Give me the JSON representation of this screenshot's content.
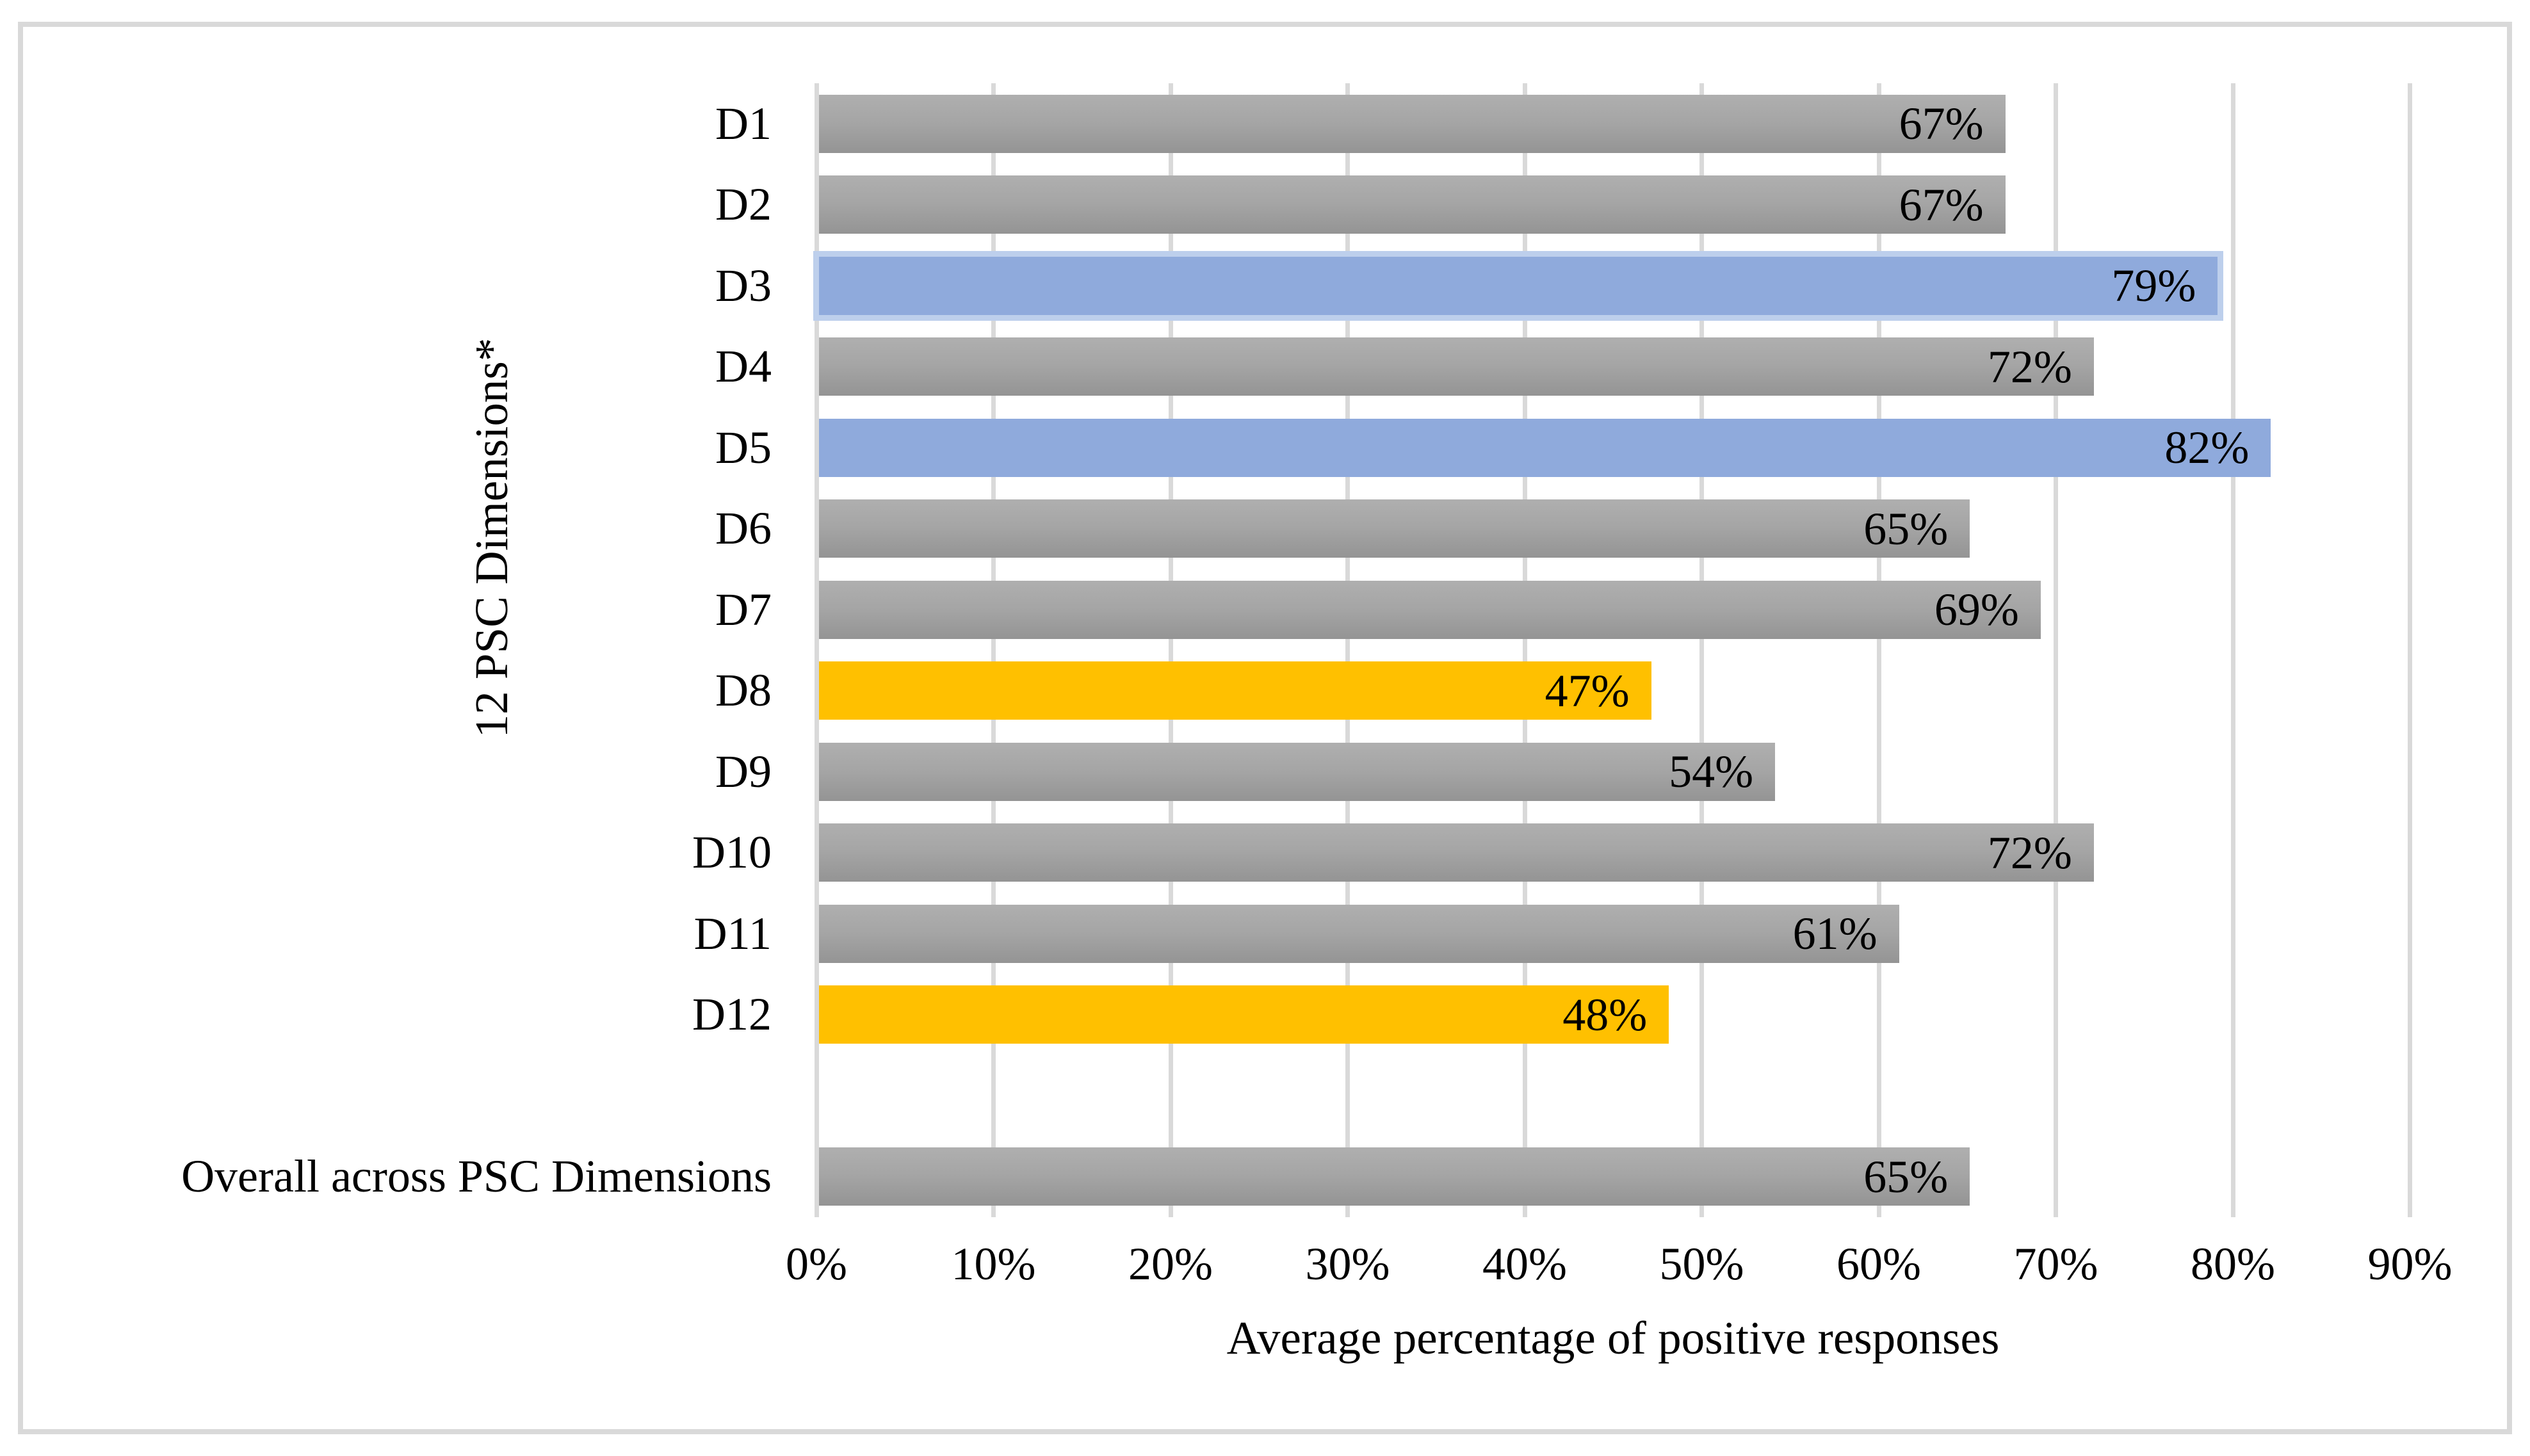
{
  "chart_data": {
    "type": "bar",
    "orientation": "horizontal",
    "title": "",
    "xlabel": "Average percentage of positive responses",
    "ylabel": "12 PSC Dimensions*",
    "xlim": [
      0,
      90
    ],
    "x_ticks": [
      "0%",
      "10%",
      "20%",
      "30%",
      "40%",
      "50%",
      "60%",
      "70%",
      "80%",
      "90%"
    ],
    "grid": "vertical",
    "legend": "none",
    "categories": [
      "D1",
      "D2",
      "D3",
      "D4",
      "D5",
      "D6",
      "D7",
      "D8",
      "D9",
      "D10",
      "D11",
      "D12",
      "",
      "Overall across PSC Dimensions"
    ],
    "rows": [
      {
        "label": "D1",
        "value": 67,
        "value_label": "67%",
        "color": "gray"
      },
      {
        "label": "D2",
        "value": 67,
        "value_label": "67%",
        "color": "gray"
      },
      {
        "label": "D3",
        "value": 79,
        "value_label": "79%",
        "color": "blue",
        "bordered": true
      },
      {
        "label": "D4",
        "value": 72,
        "value_label": "72%",
        "color": "gray"
      },
      {
        "label": "D5",
        "value": 82,
        "value_label": "82%",
        "color": "blue"
      },
      {
        "label": "D6",
        "value": 65,
        "value_label": "65%",
        "color": "gray"
      },
      {
        "label": "D7",
        "value": 69,
        "value_label": "69%",
        "color": "gray"
      },
      {
        "label": "D8",
        "value": 47,
        "value_label": "47%",
        "color": "yellow"
      },
      {
        "label": "D9",
        "value": 54,
        "value_label": "54%",
        "color": "gray"
      },
      {
        "label": "D10",
        "value": 72,
        "value_label": "72%",
        "color": "gray"
      },
      {
        "label": "D11",
        "value": 61,
        "value_label": "61%",
        "color": "gray"
      },
      {
        "label": "D12",
        "value": 48,
        "value_label": "48%",
        "color": "yellow"
      },
      {
        "label": "",
        "value": null,
        "value_label": "",
        "color": "none"
      },
      {
        "label": "Overall across PSC Dimensions",
        "value": 65,
        "value_label": "65%",
        "color": "gray"
      }
    ]
  },
  "colors": {
    "background": "#FFFFFF",
    "text": "#000000",
    "figure_border": "#D9D9D9",
    "gridline": "#D9D9D9",
    "bar_gray_top": "#AFAFAF",
    "bar_gray_mid": "#A5A5A5",
    "bar_gray_bottom": "#949494",
    "bar_blue": "#8FAADC",
    "bar_blue_border": "#BDCFEC",
    "bar_yellow": "#FFC000"
  }
}
